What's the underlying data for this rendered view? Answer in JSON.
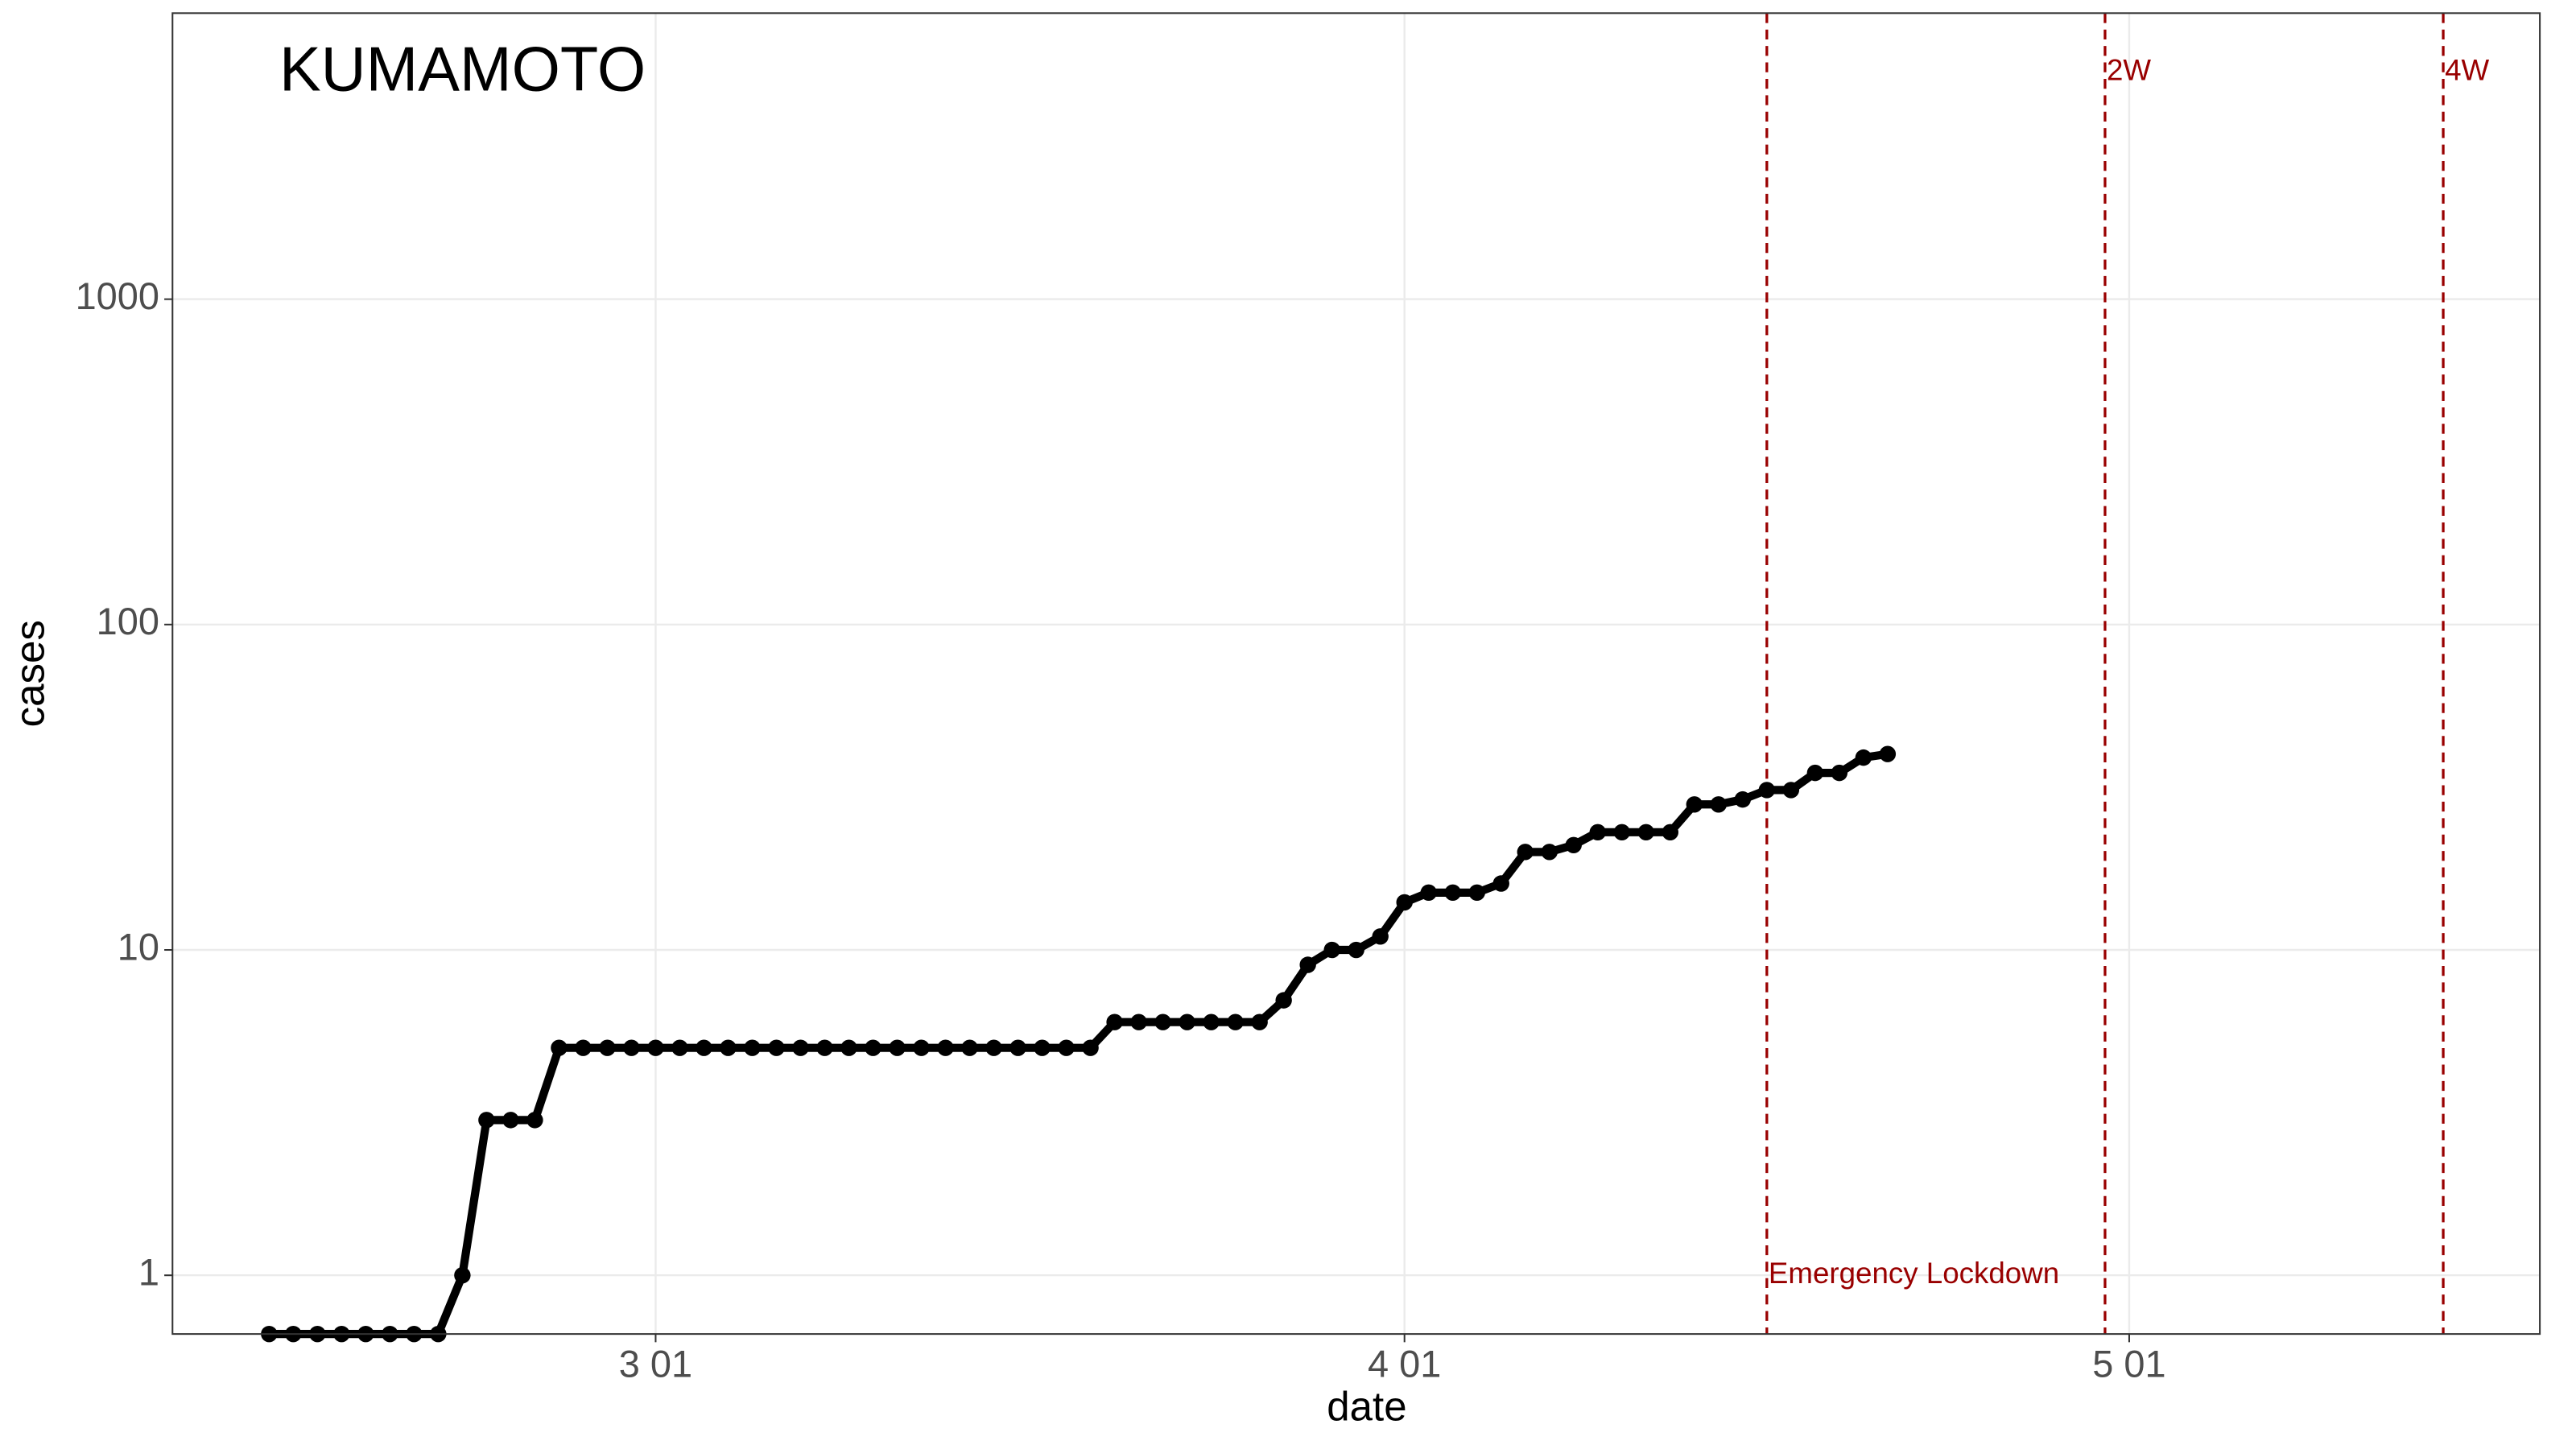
{
  "chart_data": {
    "type": "line",
    "title": "KUMAMOTO",
    "x_label": "date",
    "y_label": "cases",
    "x": [
      "02-14",
      "02-15",
      "02-16",
      "02-17",
      "02-18",
      "02-19",
      "02-20",
      "02-21",
      "02-22",
      "02-23",
      "02-24",
      "02-25",
      "02-26",
      "02-27",
      "02-28",
      "02-29",
      "03-01",
      "03-02",
      "03-03",
      "03-04",
      "03-05",
      "03-06",
      "03-07",
      "03-08",
      "03-09",
      "03-10",
      "03-11",
      "03-12",
      "03-13",
      "03-14",
      "03-15",
      "03-16",
      "03-17",
      "03-18",
      "03-19",
      "03-20",
      "03-21",
      "03-22",
      "03-23",
      "03-24",
      "03-25",
      "03-26",
      "03-27",
      "03-28",
      "03-29",
      "03-30",
      "03-31",
      "04-01",
      "04-02",
      "04-03",
      "04-04",
      "04-05",
      "04-06",
      "04-07",
      "04-08",
      "04-09",
      "04-10",
      "04-11",
      "04-12",
      "04-13",
      "04-14",
      "04-15",
      "04-16",
      "04-17",
      "04-18",
      "04-19",
      "04-20",
      "04-21"
    ],
    "series": [
      {
        "name": "cases",
        "color": "#000000",
        "values": [
          0,
          0,
          0,
          0,
          0,
          0,
          0,
          0,
          1,
          3,
          3,
          3,
          5,
          5,
          5,
          5,
          5,
          5,
          5,
          5,
          5,
          5,
          5,
          5,
          5,
          5,
          5,
          5,
          5,
          5,
          5,
          5,
          5,
          5,
          5,
          6,
          6,
          6,
          6,
          6,
          6,
          6,
          7,
          9,
          10,
          10,
          11,
          14,
          15,
          15,
          15,
          16,
          20,
          20,
          21,
          23,
          23,
          23,
          23,
          28,
          28,
          29,
          31,
          31,
          35,
          35,
          39,
          40
        ]
      }
    ],
    "xlim": [
      "02-10",
      "05-18"
    ],
    "xticks": [
      {
        "value": "03-01",
        "label": "3 01"
      },
      {
        "value": "04-01",
        "label": "4 01"
      },
      {
        "value": "05-01",
        "label": "5 01"
      }
    ],
    "ylim": [
      0.66,
      7570
    ],
    "yticks": [
      1,
      10,
      100,
      1000
    ],
    "log_y": true,
    "grid": true,
    "vlines": [
      {
        "x": "04-16",
        "label": "Emergency Lockdown",
        "label_position": "bottom"
      },
      {
        "x": "04-30",
        "label": "2W",
        "label_position": "top"
      },
      {
        "x": "05-14",
        "label": "4W",
        "label_position": "top"
      }
    ],
    "vline_color": "#990000"
  }
}
